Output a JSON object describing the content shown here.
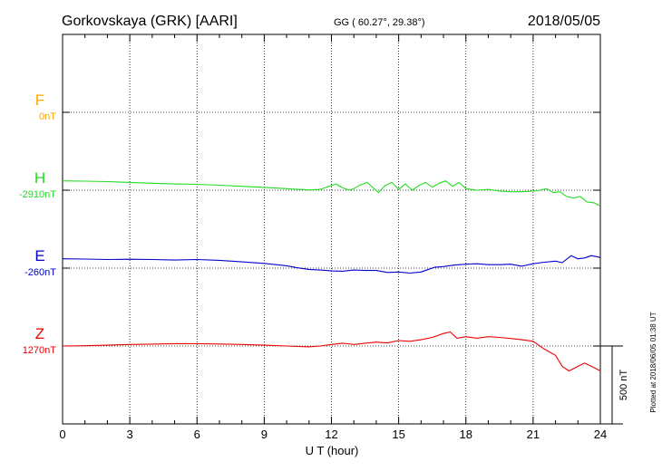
{
  "header": {
    "station": "Gorkovskaya (GRK)  [AARI]",
    "coords": "GG ( 60.27°,  29.38°)",
    "date": "2018/05/05"
  },
  "side_note": "Plotted at 2018/06/05 01:38 UT",
  "chart_data": {
    "type": "line",
    "xlabel": "U T (hour)",
    "xlim": [
      0,
      24
    ],
    "xticks": [
      0,
      3,
      6,
      9,
      12,
      15,
      18,
      21,
      24
    ],
    "x_tick_labels": [
      "0",
      "3",
      "6",
      "9",
      "12",
      "15",
      "18",
      "21",
      "24"
    ],
    "grid": true,
    "scale_bar": {
      "label": "500 nT",
      "nT": 500
    },
    "series": [
      {
        "name": "F",
        "baseline_label": "0nT",
        "color": "#ffa500",
        "baseline_nT": 0,
        "x": [],
        "y": []
      },
      {
        "name": "H",
        "baseline_label": "-2910nT",
        "color": "#22dd22",
        "baseline_nT": -2910,
        "x": [
          0,
          1,
          2,
          3,
          4,
          5,
          6,
          7,
          8,
          9,
          10,
          10.5,
          11,
          11.5,
          12,
          12.2,
          12.5,
          12.8,
          13,
          13.3,
          13.6,
          13.9,
          14.1,
          14.4,
          14.7,
          15,
          15.3,
          15.6,
          15.9,
          16.2,
          16.5,
          16.8,
          17.1,
          17.4,
          17.7,
          18,
          18.5,
          19,
          19.5,
          20,
          20.5,
          21,
          21.3,
          21.6,
          21.9,
          22.2,
          22.5,
          22.8,
          23.1,
          23.4,
          23.7,
          24
        ],
        "y": [
          -2850,
          -2852,
          -2855,
          -2860,
          -2865,
          -2870,
          -2872,
          -2878,
          -2885,
          -2892,
          -2900,
          -2905,
          -2908,
          -2905,
          -2880,
          -2870,
          -2895,
          -2910,
          -2900,
          -2875,
          -2860,
          -2900,
          -2925,
          -2880,
          -2860,
          -2905,
          -2870,
          -2910,
          -2880,
          -2860,
          -2890,
          -2865,
          -2850,
          -2885,
          -2860,
          -2900,
          -2910,
          -2905,
          -2915,
          -2920,
          -2920,
          -2915,
          -2910,
          -2900,
          -2925,
          -2920,
          -2950,
          -2960,
          -2950,
          -2985,
          -2990,
          -3010
        ]
      },
      {
        "name": "E",
        "baseline_label": "-260nT",
        "color": "#0000cc",
        "baseline_nT": -260,
        "x": [
          0,
          1,
          2,
          3,
          4,
          5,
          6,
          7,
          8,
          9,
          10,
          10.5,
          11,
          11.5,
          12,
          12.5,
          13,
          13.5,
          14,
          14.5,
          15,
          15.5,
          16,
          16.3,
          16.6,
          17,
          17.5,
          18,
          18.5,
          19,
          19.5,
          20,
          20.5,
          21,
          21.5,
          22,
          22.3,
          22.7,
          23,
          23.3,
          23.6,
          24
        ],
        "y": [
          -200,
          -202,
          -205,
          -203,
          -205,
          -208,
          -205,
          -210,
          -220,
          -230,
          -245,
          -258,
          -268,
          -272,
          -278,
          -280,
          -272,
          -275,
          -275,
          -288,
          -285,
          -292,
          -285,
          -270,
          -255,
          -250,
          -240,
          -235,
          -232,
          -238,
          -238,
          -235,
          -248,
          -232,
          -222,
          -215,
          -225,
          -180,
          -200,
          -195,
          -180,
          -192
        ]
      },
      {
        "name": "Z",
        "baseline_label": "1270nT",
        "color": "#ee0000",
        "baseline_nT": 1270,
        "x": [
          0,
          1,
          2,
          3,
          4,
          5,
          6,
          7,
          8,
          9,
          10,
          11,
          11.5,
          12,
          12.5,
          13,
          13.5,
          14,
          14.5,
          15,
          15.5,
          16,
          16.5,
          17,
          17.3,
          17.6,
          18,
          18.5,
          19,
          19.5,
          20,
          20.5,
          21,
          21.5,
          22,
          22.3,
          22.6,
          23,
          23.3,
          23.6,
          24
        ],
        "y": [
          1270,
          1272,
          1275,
          1280,
          1282,
          1285,
          1285,
          1283,
          1280,
          1275,
          1270,
          1265,
          1270,
          1280,
          1288,
          1280,
          1288,
          1295,
          1290,
          1305,
          1300,
          1310,
          1325,
          1350,
          1360,
          1320,
          1330,
          1320,
          1330,
          1325,
          1318,
          1310,
          1300,
          1250,
          1210,
          1140,
          1110,
          1140,
          1160,
          1140,
          1110
        ]
      }
    ]
  }
}
